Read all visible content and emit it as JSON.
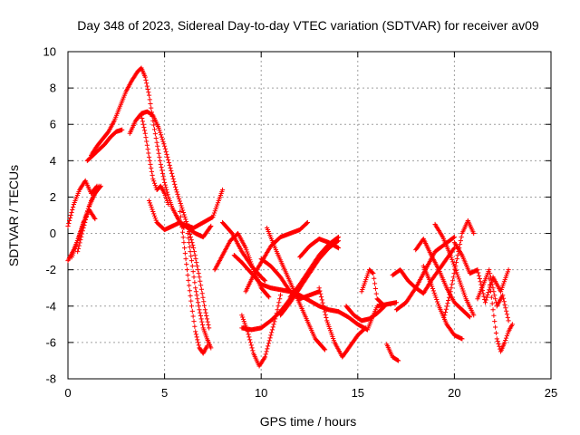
{
  "chart_data": {
    "type": "scatter",
    "title": "Day 348 of 2023, Sidereal Day-to-day VTEC variation (SDTVAR) for receiver av09",
    "xlabel": "GPS time / hours",
    "ylabel": "SDTVAR / TECUs",
    "xlim": [
      0,
      25
    ],
    "ylim": [
      -8,
      10
    ],
    "xticks": [
      "0",
      "5",
      "10",
      "15",
      "20",
      "25"
    ],
    "yticks": [
      "-8",
      "-6",
      "-4",
      "-2",
      "0",
      "2",
      "4",
      "6",
      "8",
      "10"
    ],
    "grid": true,
    "marker": "+",
    "color": "#ff0000",
    "series": [
      {
        "name": "t1",
        "x": [
          0.0,
          0.3,
          0.6,
          0.9,
          1.2,
          1.5
        ],
        "y": [
          0.4,
          1.6,
          2.4,
          2.9,
          2.2,
          2.6
        ]
      },
      {
        "name": "t2",
        "x": [
          0.0,
          0.3,
          0.6,
          0.9,
          1.2,
          1.6
        ],
        "y": [
          -1.5,
          -0.9,
          -0.1,
          0.9,
          1.8,
          2.6
        ]
      },
      {
        "name": "t3",
        "x": [
          0.2,
          0.5,
          0.8,
          1.1,
          1.4
        ],
        "y": [
          -1.3,
          -0.4,
          0.6,
          1.3,
          0.8
        ]
      },
      {
        "name": "t4",
        "x": [
          0.5,
          0.8,
          1.1,
          1.4,
          1.7
        ],
        "y": [
          -1.0,
          0.3,
          1.5,
          2.2,
          2.6
        ]
      },
      {
        "name": "t5",
        "x": [
          1.0,
          1.3,
          1.6,
          1.9,
          2.2,
          2.5,
          2.8
        ],
        "y": [
          4.0,
          4.3,
          4.6,
          4.9,
          5.3,
          5.6,
          5.7
        ]
      },
      {
        "name": "t6",
        "x": [
          1.2,
          1.5,
          1.8,
          2.1,
          2.4,
          2.7,
          3.0,
          3.3,
          3.6,
          3.8,
          4.0,
          4.2,
          4.4,
          4.6,
          4.8,
          5.0,
          5.2,
          5.4,
          5.6,
          5.8,
          6.0
        ],
        "y": [
          4.3,
          4.8,
          5.2,
          5.6,
          6.2,
          7.0,
          7.8,
          8.4,
          8.9,
          9.1,
          8.6,
          7.6,
          6.2,
          5.0,
          3.8,
          2.8,
          2.0,
          1.4,
          1.0,
          0.6,
          0.3
        ]
      },
      {
        "name": "t7",
        "x": [
          3.2,
          3.5,
          3.8,
          4.1,
          4.4,
          4.7,
          5.0,
          5.3,
          5.6,
          5.9,
          6.2,
          6.5,
          6.8,
          7.1,
          7.3
        ],
        "y": [
          5.5,
          6.2,
          6.6,
          6.7,
          6.5,
          5.8,
          4.8,
          3.6,
          2.4,
          1.4,
          0.4,
          -0.8,
          -2.4,
          -4.2,
          -5.2
        ]
      },
      {
        "name": "t8",
        "x": [
          3.8,
          4.0,
          4.2,
          4.4,
          4.6,
          4.8,
          5.0,
          5.2
        ],
        "y": [
          6.5,
          5.5,
          4.2,
          3.0,
          2.4,
          2.6,
          2.2,
          1.6
        ]
      },
      {
        "name": "t9",
        "x": [
          4.2,
          4.6,
          5.0,
          5.4,
          5.8,
          6.2,
          6.6,
          7.0,
          7.4
        ],
        "y": [
          1.8,
          0.6,
          0.2,
          0.4,
          0.6,
          0.3,
          0.0,
          -0.2,
          0.4
        ]
      },
      {
        "name": "t10",
        "x": [
          5.8,
          6.0,
          6.2,
          6.4,
          6.6,
          6.8,
          7.0,
          7.2
        ],
        "y": [
          1.2,
          -0.5,
          -2.3,
          -4.0,
          -5.4,
          -6.3,
          -6.6,
          -6.2
        ]
      },
      {
        "name": "t11",
        "x": [
          6.2,
          6.4,
          6.6,
          6.8,
          7.0,
          7.2,
          7.4
        ],
        "y": [
          0.0,
          -1.5,
          -3.0,
          -4.2,
          -5.2,
          -5.8,
          -6.3
        ]
      },
      {
        "name": "t12",
        "x": [
          6.0,
          6.5,
          7.0,
          7.5,
          7.8,
          8.0
        ],
        "y": [
          0.5,
          0.3,
          0.6,
          0.9,
          1.8,
          2.4
        ]
      },
      {
        "name": "t13",
        "x": [
          7.6,
          8.0,
          8.4,
          8.8,
          9.2,
          9.6,
          10.0,
          10.4
        ],
        "y": [
          -2.0,
          -1.2,
          -0.4,
          0.0,
          -0.8,
          -2.0,
          -3.0,
          -3.5
        ]
      },
      {
        "name": "t14",
        "x": [
          8.0,
          8.5,
          9.0,
          9.5,
          10.0,
          10.2
        ],
        "y": [
          0.6,
          0.0,
          -1.0,
          -1.8,
          -2.4,
          -2.6
        ]
      },
      {
        "name": "t15",
        "x": [
          8.6,
          9.0,
          9.5,
          10.0,
          10.5,
          11.0,
          11.5,
          12.0,
          12.5,
          13.0,
          13.5,
          14.0
        ],
        "y": [
          -1.2,
          -1.6,
          -2.2,
          -2.8,
          -3.0,
          -3.1,
          -3.2,
          -3.4,
          -3.7,
          -4.0,
          -4.2,
          -4.3
        ]
      },
      {
        "name": "t16",
        "x": [
          9.0,
          9.3,
          9.6,
          9.9,
          10.2,
          10.5,
          10.8,
          11.0
        ],
        "y": [
          -4.5,
          -5.4,
          -6.6,
          -7.3,
          -6.8,
          -5.6,
          -4.4,
          -3.4
        ]
      },
      {
        "name": "t17",
        "x": [
          9.2,
          9.6,
          10.0,
          10.5,
          11.0,
          11.5,
          12.0,
          12.4
        ],
        "y": [
          -3.2,
          -2.3,
          -1.6,
          -0.7,
          -0.2,
          0.0,
          0.2,
          0.6
        ]
      },
      {
        "name": "t18",
        "x": [
          9.0,
          9.5,
          10.0,
          10.5,
          11.0,
          11.5,
          12.0
        ],
        "y": [
          -5.2,
          -5.3,
          -5.2,
          -4.8,
          -4.3,
          -3.6,
          -3.0
        ]
      },
      {
        "name": "t19",
        "x": [
          10.0,
          10.5,
          11.0,
          11.5,
          12.0,
          12.5,
          13.0
        ],
        "y": [
          -1.4,
          -1.8,
          -2.4,
          -3.2,
          -3.6,
          -3.4,
          -3.2
        ]
      },
      {
        "name": "t20",
        "x": [
          10.3,
          10.8,
          11.3,
          11.8,
          12.3,
          12.8,
          13.3
        ],
        "y": [
          0.3,
          -1.0,
          -2.2,
          -3.4,
          -4.6,
          -5.8,
          -6.4
        ]
      },
      {
        "name": "t21",
        "x": [
          11.0,
          11.5,
          12.0,
          12.5,
          13.0,
          13.5,
          14.0
        ],
        "y": [
          -4.5,
          -3.8,
          -3.0,
          -2.2,
          -1.4,
          -0.8,
          -0.4
        ]
      },
      {
        "name": "t22",
        "x": [
          11.5,
          12.0,
          12.5,
          13.0,
          13.5,
          14.0
        ],
        "y": [
          -3.5,
          -2.8,
          -2.0,
          -1.2,
          -0.6,
          -0.2
        ]
      },
      {
        "name": "t23",
        "x": [
          12.0,
          12.5,
          13.0,
          13.5,
          14.0
        ],
        "y": [
          -1.3,
          -0.7,
          -0.3,
          -0.5,
          -0.8
        ]
      },
      {
        "name": "t24",
        "x": [
          13.0,
          13.4,
          13.8,
          14.2,
          14.6,
          15.0,
          15.4
        ],
        "y": [
          -3.0,
          -4.8,
          -6.0,
          -6.8,
          -6.2,
          -5.6,
          -5.2
        ]
      },
      {
        "name": "t25",
        "x": [
          14.0,
          14.5,
          15.0,
          15.5,
          16.0,
          16.5,
          17.0
        ],
        "y": [
          -4.3,
          -4.6,
          -5.0,
          -5.3,
          -4.0,
          -3.9,
          -3.8
        ]
      },
      {
        "name": "t26",
        "x": [
          14.4,
          14.8,
          15.2,
          15.6,
          16.0,
          16.4
        ],
        "y": [
          -4.0,
          -4.5,
          -4.8,
          -4.7,
          -4.4,
          -4.0
        ]
      },
      {
        "name": "t27",
        "x": [
          15.2,
          15.6,
          15.8,
          16.0,
          16.3
        ],
        "y": [
          -3.2,
          -2.0,
          -2.2,
          -3.6,
          -3.9
        ]
      },
      {
        "name": "t28",
        "x": [
          16.5,
          16.8,
          17.1
        ],
        "y": [
          -6.1,
          -6.8,
          -7.0
        ]
      },
      {
        "name": "t29",
        "x": [
          16.8,
          17.2,
          17.6,
          18.0,
          18.4,
          18.8,
          19.2,
          19.6,
          20.0
        ],
        "y": [
          -2.3,
          -2.0,
          -2.6,
          -3.0,
          -3.3,
          -2.6,
          -2.0,
          -1.4,
          -0.8
        ]
      },
      {
        "name": "t30",
        "x": [
          17.0,
          17.5,
          18.0,
          18.5,
          19.0,
          19.5,
          20.0
        ],
        "y": [
          -4.2,
          -3.8,
          -3.0,
          -2.0,
          -1.0,
          -0.6,
          -0.2
        ]
      },
      {
        "name": "t31",
        "x": [
          18.0,
          18.4,
          18.8,
          19.2,
          19.6,
          20.0,
          20.4,
          20.8
        ],
        "y": [
          -0.9,
          -0.3,
          -1.2,
          -2.0,
          -3.0,
          -3.8,
          -4.2,
          -4.6
        ]
      },
      {
        "name": "t32",
        "x": [
          18.4,
          18.8,
          19.2,
          19.6,
          20.0,
          20.4
        ],
        "y": [
          -1.8,
          -2.8,
          -4.0,
          -5.0,
          -5.6,
          -5.8
        ]
      },
      {
        "name": "t33",
        "x": [
          19.0,
          19.4,
          19.8,
          20.2,
          20.6,
          21.0
        ],
        "y": [
          0.5,
          -0.2,
          -1.2,
          -2.4,
          -3.6,
          -4.5
        ]
      },
      {
        "name": "t34",
        "x": [
          19.5,
          19.8,
          20.1,
          20.4,
          20.7,
          21.0
        ],
        "y": [
          -4.5,
          -3.2,
          -1.6,
          0.0,
          0.7,
          0.0
        ]
      },
      {
        "name": "t35",
        "x": [
          20.0,
          20.4,
          20.8,
          21.2,
          21.6,
          22.0,
          22.4,
          22.8
        ],
        "y": [
          -0.5,
          -1.2,
          -2.2,
          -2.0,
          -3.8,
          -2.4,
          -3.2,
          -2.0
        ]
      },
      {
        "name": "t36",
        "x": [
          21.2,
          21.5,
          21.8,
          22.0,
          22.2,
          22.5,
          22.8
        ],
        "y": [
          -3.6,
          -2.8,
          -2.0,
          -3.0,
          -4.0,
          -3.4,
          -4.8
        ]
      },
      {
        "name": "t37",
        "x": [
          21.8,
          22.0,
          22.2,
          22.4,
          22.6,
          22.8,
          23.0
        ],
        "y": [
          -2.5,
          -4.2,
          -5.8,
          -6.5,
          -6.0,
          -5.4,
          -5.0
        ]
      }
    ]
  }
}
